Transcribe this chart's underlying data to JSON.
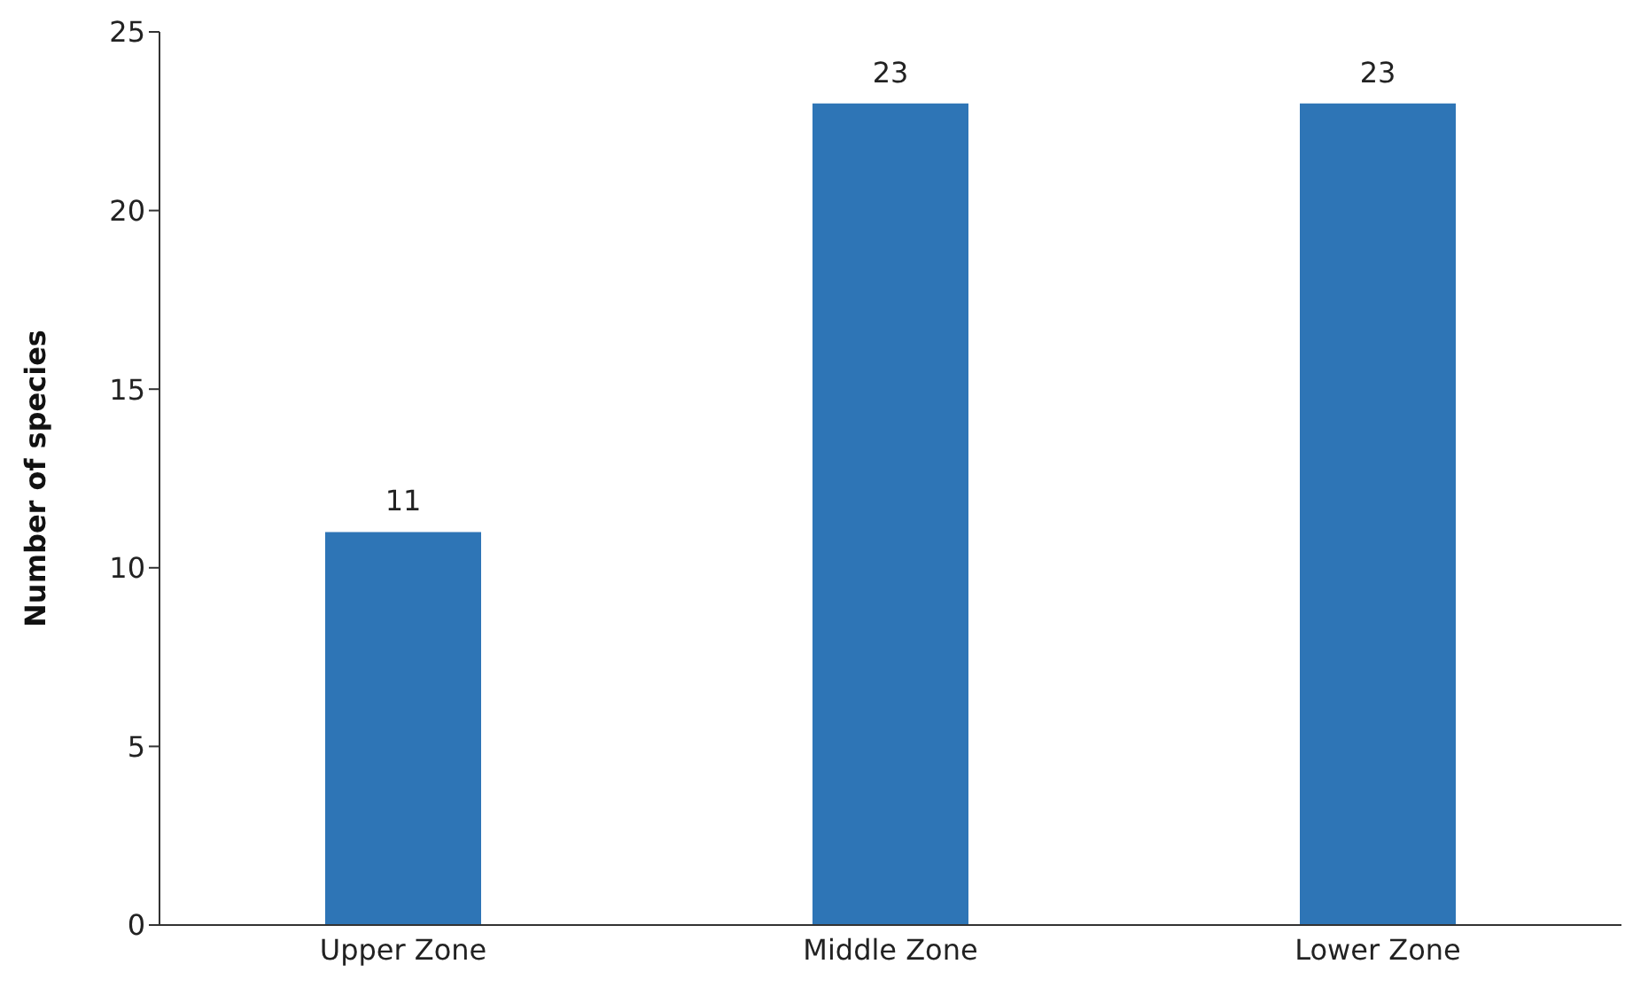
{
  "chart_data": {
    "type": "bar",
    "ylabel": "Number of species",
    "categories": [
      "Upper Zone",
      "Middle Zone",
      "Lower Zone"
    ],
    "values": [
      11,
      23,
      23
    ],
    "color": "#2e75b6",
    "ylim": [
      0,
      25
    ],
    "yticks": [
      0,
      5,
      10,
      15,
      20,
      25
    ],
    "grid": false,
    "data_labels": true
  }
}
